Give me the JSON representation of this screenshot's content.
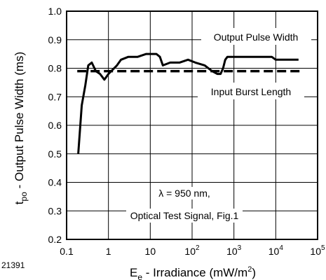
{
  "figure_id": "21391",
  "chart_data": {
    "type": "line",
    "x_scale": "log",
    "xlim": [
      0.1,
      100000
    ],
    "ylim": [
      0.2,
      1.0
    ],
    "grid": true,
    "xlabel_parts": [
      "E",
      "e",
      " - Irradiance (mW/m",
      "2",
      ")"
    ],
    "ylabel_parts": [
      "t",
      "po",
      " - Output Pulse Width (ms)"
    ],
    "x_tick_labels": [
      {
        "value": 0.1,
        "base": "0.1",
        "exp": ""
      },
      {
        "value": 1,
        "base": "1",
        "exp": ""
      },
      {
        "value": 10,
        "base": "10",
        "exp": ""
      },
      {
        "value": 100,
        "base": "10",
        "exp": "2"
      },
      {
        "value": 1000,
        "base": "10",
        "exp": "3"
      },
      {
        "value": 10000,
        "base": "10",
        "exp": "4"
      },
      {
        "value": 100000,
        "base": "10",
        "exp": "5"
      }
    ],
    "y_ticks": [
      0.2,
      0.3,
      0.4,
      0.5,
      0.6,
      0.7,
      0.8,
      0.9,
      1.0
    ],
    "y_tick_labels": [
      "0.2",
      "0.3",
      "0.4",
      "0.5",
      "0.6",
      "0.7",
      "0.8",
      "0.9",
      "1.0"
    ],
    "series": [
      {
        "name": "Output Pulse Width",
        "style": "solid",
        "color": "#000000",
        "x": [
          0.19,
          0.23,
          0.28,
          0.33,
          0.4,
          0.5,
          0.63,
          0.8,
          1.0,
          1.6,
          2.0,
          3.0,
          5.0,
          8.0,
          11,
          14,
          17,
          20,
          30,
          50,
          80,
          120,
          200,
          300,
          400,
          480,
          550,
          620,
          700,
          900,
          1200,
          1600,
          2500,
          4000,
          6000,
          8000,
          10000,
          15000,
          25000,
          35000
        ],
        "y": [
          0.5,
          0.67,
          0.74,
          0.81,
          0.82,
          0.79,
          0.78,
          0.76,
          0.78,
          0.81,
          0.83,
          0.84,
          0.84,
          0.85,
          0.85,
          0.85,
          0.84,
          0.81,
          0.82,
          0.82,
          0.83,
          0.82,
          0.81,
          0.79,
          0.78,
          0.78,
          0.8,
          0.83,
          0.84,
          0.84,
          0.84,
          0.84,
          0.84,
          0.84,
          0.84,
          0.84,
          0.83,
          0.83,
          0.83,
          0.83
        ]
      },
      {
        "name": "Input Burst Length",
        "style": "dashed",
        "color": "#000000",
        "x": [
          0.18,
          40000
        ],
        "y": [
          0.79,
          0.79
        ]
      }
    ],
    "annotations": [
      {
        "id": "output-pulse-width",
        "text": "Output Pulse Width"
      },
      {
        "id": "input-burst-length",
        "text": "Input Burst Length"
      },
      {
        "id": "condition-1",
        "text": "λ = 950 nm,"
      },
      {
        "id": "condition-2",
        "text": "Optical Test Signal, Fig.1"
      }
    ]
  }
}
